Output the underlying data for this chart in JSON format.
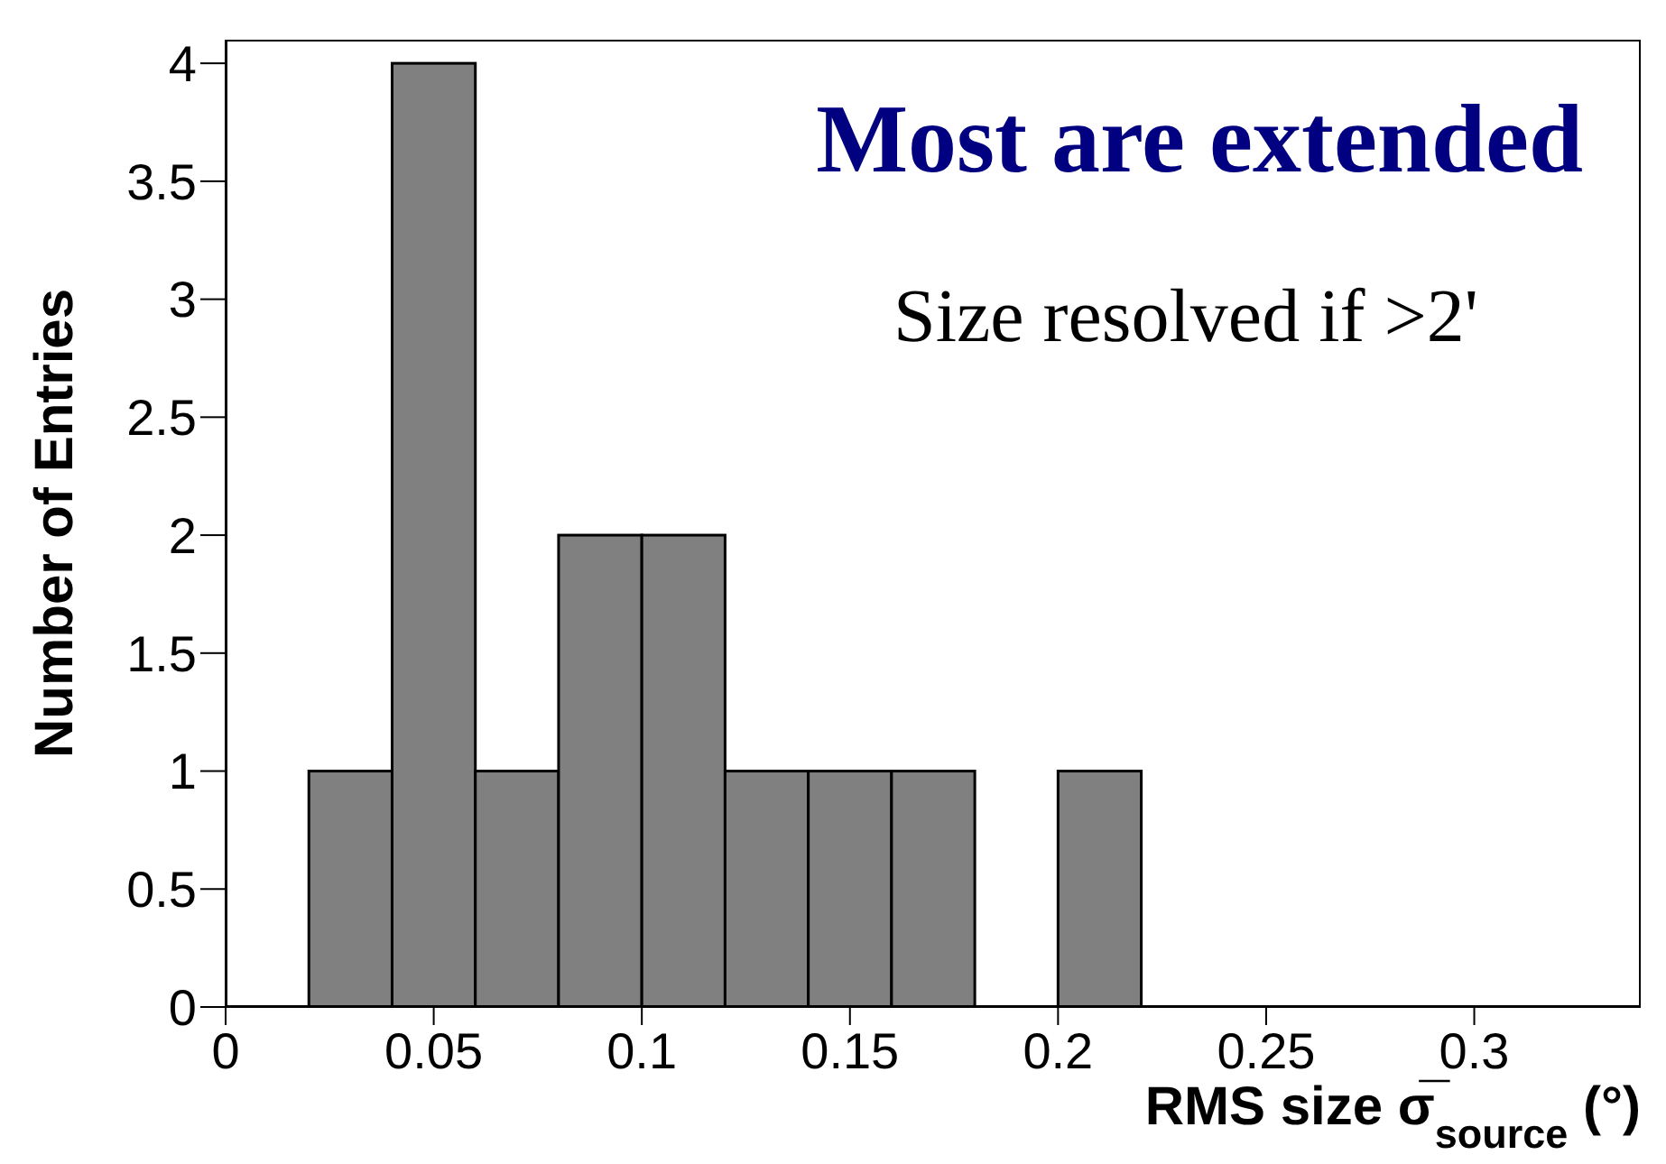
{
  "chart_data": {
    "type": "histogram",
    "xlabel": "RMS size σ̅$_{source}$ (°)",
    "ylabel": "Number of Entries",
    "annotations": [
      "Most are extended",
      "Size resolved if >2'"
    ],
    "bins": [
      0.02,
      0.04,
      0.06,
      0.08,
      0.1,
      0.12,
      0.14,
      0.16,
      0.18,
      0.2,
      0.22
    ],
    "values": [
      1,
      4,
      1,
      2,
      2,
      1,
      1,
      1,
      0,
      1
    ],
    "color": "#808080",
    "xlim": [
      0,
      0.34
    ],
    "xticks": [
      0,
      0.05,
      0.1,
      0.15,
      0.2,
      0.25,
      0.3
    ],
    "ylim": [
      0,
      4.1
    ],
    "yticks": [
      0,
      0.5,
      1,
      1.5,
      2,
      2.5,
      3,
      3.5,
      4
    ],
    "grid": false,
    "legend": false
  }
}
